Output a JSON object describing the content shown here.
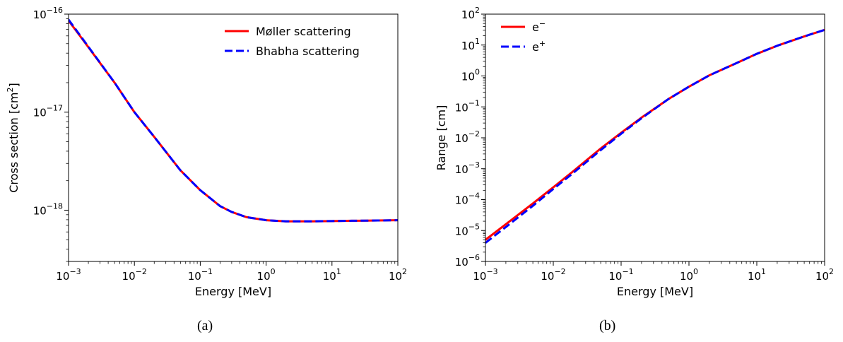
{
  "chart_data": [
    {
      "type": "line",
      "caption": "(a)",
      "xlabel": "Energy [MeV]",
      "ylabel": "Cross section [cm",
      "ylabel_sup": "2",
      "ylabel_end": "]",
      "xscale": "log",
      "yscale": "log",
      "xlim": [
        0.001,
        100
      ],
      "ylim": [
        3e-19,
        1e-16
      ],
      "xticks": [
        {
          "base": "10",
          "exp": "−3"
        },
        {
          "base": "10",
          "exp": "−2"
        },
        {
          "base": "10",
          "exp": "−1"
        },
        {
          "base": "10",
          "exp": "0"
        },
        {
          "base": "10",
          "exp": "1"
        },
        {
          "base": "10",
          "exp": "2"
        }
      ],
      "yticks": [
        {
          "base": "10",
          "exp": "−18"
        },
        {
          "base": "10",
          "exp": "−17"
        },
        {
          "base": "10",
          "exp": "−16"
        }
      ],
      "legend_position": "top-right",
      "series": [
        {
          "name": "Møller scattering",
          "color": "#ff0000",
          "style": "solid",
          "x": [
            0.001,
            0.002,
            0.005,
            0.01,
            0.02,
            0.05,
            0.1,
            0.2,
            0.3,
            0.5,
            1,
            2,
            5,
            10,
            20,
            50,
            100
          ],
          "y": [
            8.6e-17,
            4.6e-17,
            2e-17,
            1e-17,
            5.6e-18,
            2.55e-18,
            1.6e-18,
            1.1e-18,
            9.6e-19,
            8.5e-19,
            7.9e-19,
            7.7e-19,
            7.7e-19,
            7.75e-19,
            7.8e-19,
            7.85e-19,
            7.9e-19
          ]
        },
        {
          "name": "Bhabha scattering",
          "color": "#0000ff",
          "style": "dashed",
          "x": [
            0.001,
            0.002,
            0.005,
            0.01,
            0.02,
            0.05,
            0.1,
            0.2,
            0.3,
            0.5,
            1,
            2,
            5,
            10,
            20,
            50,
            100
          ],
          "y": [
            8.8e-17,
            4.65e-17,
            2e-17,
            1e-17,
            5.6e-18,
            2.55e-18,
            1.6e-18,
            1.1e-18,
            9.6e-19,
            8.5e-19,
            7.9e-19,
            7.7e-19,
            7.7e-19,
            7.75e-19,
            7.8e-19,
            7.85e-19,
            7.9e-19
          ]
        }
      ]
    },
    {
      "type": "line",
      "caption": "(b)",
      "xlabel": "Energy [MeV]",
      "ylabel": "Range [cm]",
      "xscale": "log",
      "yscale": "log",
      "xlim": [
        0.001,
        100
      ],
      "ylim": [
        1e-06,
        100
      ],
      "xticks": [
        {
          "base": "10",
          "exp": "−3"
        },
        {
          "base": "10",
          "exp": "−2"
        },
        {
          "base": "10",
          "exp": "−1"
        },
        {
          "base": "10",
          "exp": "0"
        },
        {
          "base": "10",
          "exp": "1"
        },
        {
          "base": "10",
          "exp": "2"
        }
      ],
      "yticks": [
        {
          "base": "10",
          "exp": "−6"
        },
        {
          "base": "10",
          "exp": "−5"
        },
        {
          "base": "10",
          "exp": "−4"
        },
        {
          "base": "10",
          "exp": "−3"
        },
        {
          "base": "10",
          "exp": "−2"
        },
        {
          "base": "10",
          "exp": "−1"
        },
        {
          "base": "10",
          "exp": "0"
        },
        {
          "base": "10",
          "exp": "1"
        },
        {
          "base": "10",
          "exp": "2"
        }
      ],
      "legend_position": "top-left",
      "series": [
        {
          "name": "e",
          "name_sup": "−",
          "color": "#ff0000",
          "style": "solid",
          "x": [
            0.001,
            0.002,
            0.005,
            0.01,
            0.02,
            0.05,
            0.1,
            0.2,
            0.5,
            1,
            2,
            5,
            10,
            20,
            50,
            100
          ],
          "y": [
            5e-06,
            1.6e-05,
            7.5e-05,
            0.00025,
            0.00085,
            0.0045,
            0.0145,
            0.045,
            0.18,
            0.45,
            1.05,
            2.6,
            5.2,
            9.5,
            19,
            31
          ]
        },
        {
          "name": "e",
          "name_sup": "+",
          "color": "#0000ff",
          "style": "dashed",
          "x": [
            0.001,
            0.002,
            0.005,
            0.01,
            0.02,
            0.05,
            0.1,
            0.2,
            0.5,
            1,
            2,
            5,
            10,
            20,
            50,
            100
          ],
          "y": [
            4e-06,
            1.3e-05,
            6.3e-05,
            0.00022,
            0.00075,
            0.004,
            0.0135,
            0.043,
            0.18,
            0.45,
            1.05,
            2.6,
            5.2,
            9.5,
            19,
            31
          ]
        }
      ]
    }
  ]
}
